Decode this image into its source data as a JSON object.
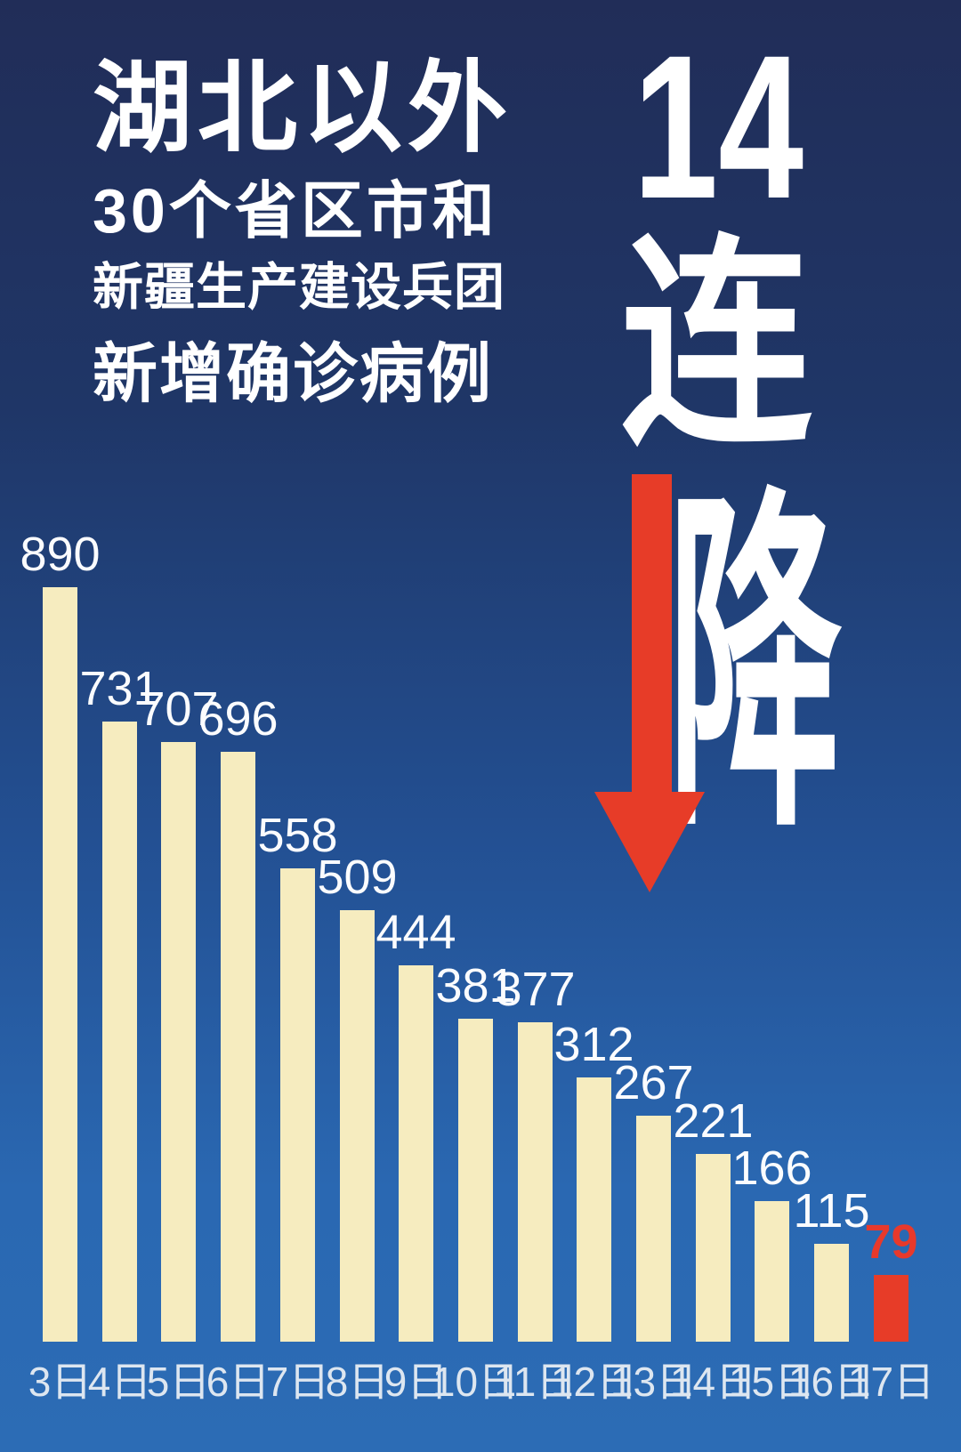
{
  "poster": {
    "title_lines": [
      "湖北以外",
      "30个省区市和",
      "新疆生产建设兵团",
      "新增确诊病例"
    ],
    "slogan": {
      "number": "14",
      "char_lian": "连",
      "char_jiang": "降"
    }
  },
  "colors": {
    "background_top": "#212d58",
    "background_bottom": "#2c6cb5",
    "text_white": "#ffffff",
    "arrow_red": "#e73c28"
  },
  "chart_data": {
    "type": "bar",
    "title": "湖北以外30个省区市和新疆生产建设兵团新增确诊病例",
    "categories": [
      "3日",
      "4日",
      "5日",
      "6日",
      "7日",
      "8日",
      "9日",
      "10日",
      "11日",
      "12日",
      "13日",
      "14日",
      "15日",
      "16日",
      "17日"
    ],
    "values": [
      890,
      731,
      707,
      696,
      558,
      509,
      444,
      381,
      377,
      312,
      267,
      221,
      166,
      115,
      79
    ],
    "highlight_index": 14,
    "bar_color": "#f6ecbf",
    "highlight_color": "#e73c28",
    "value_label_color": "#fbfcfe",
    "highlight_label_color": "#e8392b",
    "axis_label_color": "#dde6f0",
    "xlabel": "",
    "ylabel": "",
    "ylim": [
      0,
      890
    ],
    "grid": false,
    "legend": false
  }
}
